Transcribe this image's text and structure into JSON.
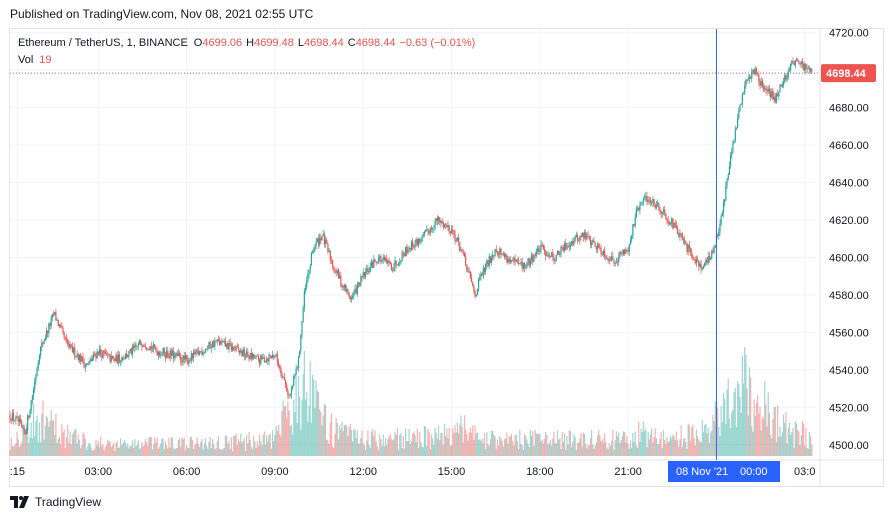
{
  "header": {
    "published": "Published on TradingView.com, Nov 08, 2021 02:55 UTC"
  },
  "footer": {
    "brand": "TradingView",
    "logo_icon": "tradingview-logo-icon"
  },
  "colors": {
    "up": "#26a69a",
    "down": "#ef5350",
    "grid": "#f0f3fa",
    "text": "#131722",
    "crosshair": "#2962ff",
    "price_label_bg": "#ef5350",
    "time_label_bg": "#2962ff"
  },
  "chart_data": {
    "type": "candlestick",
    "symbol": "Ethereum / TetherUS",
    "interval": "1",
    "exchange": "BINANCE",
    "ohlc": {
      "O_label": "O",
      "O": "4699.06",
      "H_label": "H",
      "H": "4699.48",
      "L_label": "L",
      "L": "4698.44",
      "C_label": "C",
      "C": "4698.44",
      "change": "−0.63 (−0.01%)"
    },
    "volume": {
      "label": "Vol",
      "value": "19"
    },
    "last_price_label": "4698.44",
    "last_price": 4698.44,
    "y_axis": {
      "ticks": [
        "4720.00",
        "4700.00",
        "4680.00",
        "4660.00",
        "4640.00",
        "4620.00",
        "4600.00",
        "4580.00",
        "4560.00",
        "4540.00",
        "4520.00",
        "4500.00"
      ],
      "range": [
        4494,
        4722
      ]
    },
    "x_axis": {
      "ticks": [
        ":15",
        "03:00",
        "06:00",
        "09:00",
        "12:00",
        "15:00",
        "18:00",
        "21:00",
        "03:0"
      ],
      "tick_hours": [
        0.25,
        3,
        6,
        9,
        12,
        15,
        18,
        21,
        27
      ],
      "range_hours": [
        0.0,
        27.45
      ],
      "crosshair_label_date": "08 Nov '21",
      "crosshair_label_time": "00:00",
      "crosshair_hour": 24
    },
    "price_path": [
      [
        0.0,
        4516
      ],
      [
        0.3,
        4512
      ],
      [
        0.5,
        4505
      ],
      [
        0.8,
        4530
      ],
      [
        1.0,
        4550
      ],
      [
        1.3,
        4562
      ],
      [
        1.5,
        4570
      ],
      [
        1.8,
        4558
      ],
      [
        2.0,
        4552
      ],
      [
        2.3,
        4548
      ],
      [
        2.6,
        4542
      ],
      [
        3.0,
        4550
      ],
      [
        3.5,
        4545
      ],
      [
        4.0,
        4548
      ],
      [
        4.5,
        4555
      ],
      [
        5.0,
        4550
      ],
      [
        5.5,
        4548
      ],
      [
        6.0,
        4545
      ],
      [
        6.5,
        4550
      ],
      [
        7.0,
        4555
      ],
      [
        7.5,
        4552
      ],
      [
        8.0,
        4548
      ],
      [
        8.5,
        4545
      ],
      [
        9.0,
        4548
      ],
      [
        9.2,
        4540
      ],
      [
        9.5,
        4525
      ],
      [
        9.8,
        4545
      ],
      [
        10.0,
        4580
      ],
      [
        10.3,
        4605
      ],
      [
        10.6,
        4612
      ],
      [
        11.0,
        4595
      ],
      [
        11.3,
        4585
      ],
      [
        11.6,
        4578
      ],
      [
        12.0,
        4590
      ],
      [
        12.5,
        4600
      ],
      [
        13.0,
        4595
      ],
      [
        13.5,
        4605
      ],
      [
        14.0,
        4610
      ],
      [
        14.5,
        4620
      ],
      [
        15.0,
        4615
      ],
      [
        15.3,
        4605
      ],
      [
        15.6,
        4590
      ],
      [
        15.8,
        4580
      ],
      [
        16.0,
        4590
      ],
      [
        16.5,
        4605
      ],
      [
        17.0,
        4598
      ],
      [
        17.5,
        4595
      ],
      [
        18.0,
        4605
      ],
      [
        18.5,
        4600
      ],
      [
        19.0,
        4608
      ],
      [
        19.5,
        4612
      ],
      [
        20.0,
        4605
      ],
      [
        20.5,
        4598
      ],
      [
        21.0,
        4605
      ],
      [
        21.3,
        4625
      ],
      [
        21.6,
        4632
      ],
      [
        22.0,
        4628
      ],
      [
        22.5,
        4618
      ],
      [
        23.0,
        4605
      ],
      [
        23.5,
        4595
      ],
      [
        23.8,
        4600
      ],
      [
        24.0,
        4610
      ],
      [
        24.2,
        4625
      ],
      [
        24.5,
        4655
      ],
      [
        24.8,
        4680
      ],
      [
        25.0,
        4695
      ],
      [
        25.3,
        4700
      ],
      [
        25.6,
        4690
      ],
      [
        26.0,
        4685
      ],
      [
        26.3,
        4695
      ],
      [
        26.6,
        4705
      ],
      [
        26.9,
        4703
      ],
      [
        27.2,
        4699
      ]
    ],
    "volume_path": [
      [
        0.0,
        8
      ],
      [
        1.0,
        18
      ],
      [
        2.0,
        10
      ],
      [
        3.0,
        6
      ],
      [
        6.0,
        6
      ],
      [
        9.0,
        8
      ],
      [
        9.5,
        25
      ],
      [
        10.0,
        35
      ],
      [
        10.5,
        20
      ],
      [
        11.0,
        12
      ],
      [
        12.0,
        8
      ],
      [
        15.0,
        10
      ],
      [
        15.5,
        14
      ],
      [
        16.0,
        8
      ],
      [
        21.0,
        8
      ],
      [
        21.5,
        12
      ],
      [
        22.0,
        8
      ],
      [
        23.8,
        12
      ],
      [
        24.0,
        20
      ],
      [
        24.5,
        30
      ],
      [
        25.0,
        35
      ],
      [
        25.5,
        28
      ],
      [
        26.0,
        18
      ],
      [
        26.5,
        12
      ],
      [
        27.2,
        10
      ]
    ]
  }
}
